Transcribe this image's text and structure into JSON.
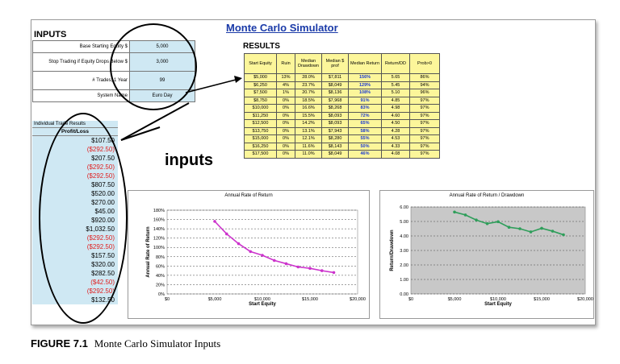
{
  "title": "Monte Carlo Simulator",
  "inputs": {
    "header": "INPUTS",
    "rows": [
      {
        "label": "Base Starting Equity $",
        "value": "5,000"
      },
      {
        "label": "Stop Trading if Equity Drops Below $",
        "value": "3,000"
      },
      {
        "label": "# Trades, 1 Year",
        "value": "99"
      },
      {
        "label": "System Name",
        "value": "Euro Day"
      }
    ]
  },
  "results": {
    "header": "RESULTS",
    "columns": [
      "Start Equity",
      "Ruin",
      "Median Drawdown",
      "Median $ prof",
      "Median Return",
      "Return/DD",
      "Prob>0"
    ],
    "rows": [
      [
        "$5,000",
        "13%",
        "28.0%",
        "$7,811",
        "156%",
        "5.65",
        "86%"
      ],
      [
        "$6,250",
        "4%",
        "23.7%",
        "$8,049",
        "129%",
        "5.45",
        "94%"
      ],
      [
        "$7,500",
        "1%",
        "20.7%",
        "$8,136",
        "108%",
        "5.10",
        "96%"
      ],
      [
        "$8,750",
        "0%",
        "18.5%",
        "$7,968",
        "91%",
        "4.85",
        "97%"
      ],
      [
        "$10,000",
        "0%",
        "16.6%",
        "$8,268",
        "83%",
        "4.98",
        "97%"
      ],
      [
        "$11,250",
        "0%",
        "15.5%",
        "$8,093",
        "72%",
        "4.60",
        "97%"
      ],
      [
        "$12,500",
        "0%",
        "14.2%",
        "$8,093",
        "65%",
        "4.50",
        "97%"
      ],
      [
        "$13,750",
        "0%",
        "13.1%",
        "$7,943",
        "58%",
        "4.28",
        "97%"
      ],
      [
        "$15,000",
        "0%",
        "12.1%",
        "$8,280",
        "55%",
        "4.53",
        "97%"
      ],
      [
        "$16,250",
        "0%",
        "11.6%",
        "$8,143",
        "50%",
        "4.33",
        "97%"
      ],
      [
        "$17,500",
        "0%",
        "11.0%",
        "$8,049",
        "46%",
        "4.08",
        "97%"
      ]
    ]
  },
  "trades": {
    "header": "Individual Trade Results",
    "subheader": "Profit/Loss",
    "values": [
      "$107.50",
      "($292.50)",
      "$207.50",
      "($292.50)",
      "($292.50)",
      "$807.50",
      "$520.00",
      "$270.00",
      "$45.00",
      "$920.00",
      "$1,032.50",
      "($292.50)",
      "($292.50)",
      "$157.50",
      "$320.00",
      "$282.50",
      "($42.50)",
      "($292.50)",
      "$132.50"
    ]
  },
  "annotation_label": "inputs",
  "chart_data": [
    {
      "type": "line",
      "title": "Annual Rate of Return",
      "xlabel": "Start Equity",
      "ylabel": "Annual Rate of Return",
      "x": [
        5000,
        6250,
        7500,
        8750,
        10000,
        11250,
        12500,
        13750,
        15000,
        16250,
        17500
      ],
      "y": [
        156,
        129,
        108,
        91,
        83,
        72,
        65,
        58,
        55,
        50,
        46
      ],
      "xlim": [
        0,
        20000
      ],
      "ylim": [
        0,
        180
      ],
      "xticks": [
        "$0",
        "$5,000",
        "$10,000",
        "$15,000",
        "$20,000"
      ],
      "yticks": [
        "0%",
        "20%",
        "40%",
        "60%",
        "80%",
        "100%",
        "120%",
        "140%",
        "160%",
        "180%"
      ],
      "color": "#cc33cc",
      "grid": true
    },
    {
      "type": "line",
      "title": "Annual Rate of Return / Drawdown",
      "xlabel": "Start Equity",
      "ylabel": "Return/Drawdown",
      "x": [
        5000,
        6250,
        7500,
        8750,
        10000,
        11250,
        12500,
        13750,
        15000,
        16250,
        17500
      ],
      "y": [
        5.65,
        5.45,
        5.1,
        4.85,
        4.98,
        4.6,
        4.5,
        4.28,
        4.53,
        4.33,
        4.08
      ],
      "xlim": [
        0,
        20000
      ],
      "ylim": [
        0,
        6
      ],
      "xticks": [
        "$0",
        "$5,000",
        "$10,000",
        "$15,000",
        "$20,000"
      ],
      "yticks": [
        "0.00",
        "1.00",
        "2.00",
        "3.00",
        "4.00",
        "5.00",
        "6.00"
      ],
      "color": "#2e9e5a",
      "grid": true
    }
  ],
  "caption": {
    "label": "FIGURE 7.1",
    "text": "Monte Carlo Simulator Inputs"
  }
}
